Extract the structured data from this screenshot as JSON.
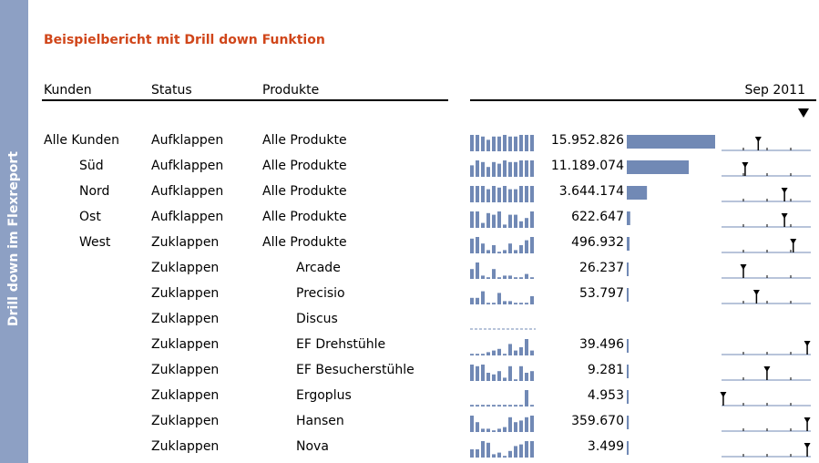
{
  "sidebar": {
    "label": "Drill down im Flexreport"
  },
  "report": {
    "title": "Beispielbericht mit Drill down Funktion",
    "headers": {
      "customers": "Kunden",
      "status": "Status",
      "products": "Produkte",
      "period": "Sep 2011"
    },
    "sort_icon": "triangle-down-icon",
    "colors": {
      "title": "#d0461a",
      "sidebar": "#8da0c4",
      "bars": "#7189b5"
    },
    "rows": [
      {
        "customer": "Alle Kunden",
        "status": "Aufklappen",
        "product": "Alle Produkte",
        "value": "15.952.826",
        "value_num": 15952826,
        "spark": [
          10,
          10,
          9,
          7,
          9,
          9,
          10,
          9,
          9,
          10,
          10,
          10
        ],
        "pin": 0.42
      },
      {
        "customer": "Süd",
        "status": "Aufklappen",
        "product": "Alle Produkte",
        "value": "11.189.074",
        "value_num": 11189074,
        "spark": [
          7,
          10,
          9,
          6,
          9,
          8,
          10,
          9,
          9,
          10,
          10,
          10
        ],
        "pin": 0.27
      },
      {
        "customer": "Nord",
        "status": "Aufklappen",
        "product": "Alle Produkte",
        "value": "3.644.174",
        "value_num": 3644174,
        "spark": [
          10,
          10,
          10,
          8,
          10,
          9,
          10,
          8,
          8,
          10,
          10,
          10
        ],
        "pin": 0.72
      },
      {
        "customer": "Ost",
        "status": "Aufklappen",
        "product": "Alle Produkte",
        "value": "622.647",
        "value_num": 622647,
        "spark": [
          10,
          10,
          3,
          9,
          8,
          10,
          2,
          8,
          8,
          4,
          6,
          10
        ],
        "pin": 0.72
      },
      {
        "customer": "West",
        "status": "Zuklappen",
        "product": "Alle Produkte",
        "value": "496.932",
        "value_num": 496932,
        "spark": [
          9,
          10,
          6,
          2,
          5,
          1,
          2,
          6,
          2,
          5,
          8,
          10
        ],
        "pin": 0.82
      },
      {
        "customer": "",
        "status": "Zuklappen",
        "product": "Arcade",
        "value": "26.237",
        "value_num": 26237,
        "spark": [
          6,
          10,
          2,
          1,
          6,
          1,
          2,
          2,
          1,
          1,
          3,
          1
        ],
        "pin": 0.25
      },
      {
        "customer": "",
        "status": "Zuklappen",
        "product": "Precisio",
        "value": "53.797",
        "value_num": 53797,
        "spark": [
          4,
          4,
          8,
          1,
          1,
          7,
          2,
          2,
          1,
          1,
          1,
          5
        ],
        "pin": 0.4
      },
      {
        "customer": "",
        "status": "Zuklappen",
        "product": "Discus",
        "value": "",
        "value_num": 0,
        "spark": [
          0,
          0,
          0,
          0,
          0,
          0,
          0,
          0,
          0,
          0,
          0,
          0
        ],
        "pin": null
      },
      {
        "customer": "",
        "status": "Zuklappen",
        "product": "EF Drehstühle",
        "value": "39.496",
        "value_num": 39496,
        "spark": [
          1,
          1,
          1,
          2,
          3,
          4,
          1,
          7,
          3,
          5,
          10,
          3
        ],
        "pin": 0.98
      },
      {
        "customer": "",
        "status": "Zuklappen",
        "product": "EF Besucherstühle",
        "value": "9.281",
        "value_num": 9281,
        "spark": [
          10,
          9,
          10,
          5,
          4,
          6,
          2,
          9,
          1,
          9,
          5,
          6
        ],
        "pin": 0.52
      },
      {
        "customer": "",
        "status": "Zuklappen",
        "product": "Ergoplus",
        "value": "4.953",
        "value_num": 4953,
        "spark": [
          1,
          1,
          1,
          1,
          1,
          1,
          1,
          1,
          1,
          1,
          10,
          1
        ],
        "pin": 0.02
      },
      {
        "customer": "",
        "status": "Zuklappen",
        "product": "Hansen",
        "value": "359.670",
        "value_num": 359670,
        "spark": [
          10,
          6,
          2,
          2,
          1,
          2,
          3,
          9,
          6,
          7,
          9,
          10
        ],
        "pin": 0.98
      },
      {
        "customer": "",
        "status": "Zuklappen",
        "product": "Nova",
        "value": "3.499",
        "value_num": 3499,
        "spark": [
          5,
          5,
          10,
          9,
          2,
          3,
          1,
          4,
          7,
          8,
          10,
          10
        ],
        "pin": 0.98
      }
    ]
  }
}
